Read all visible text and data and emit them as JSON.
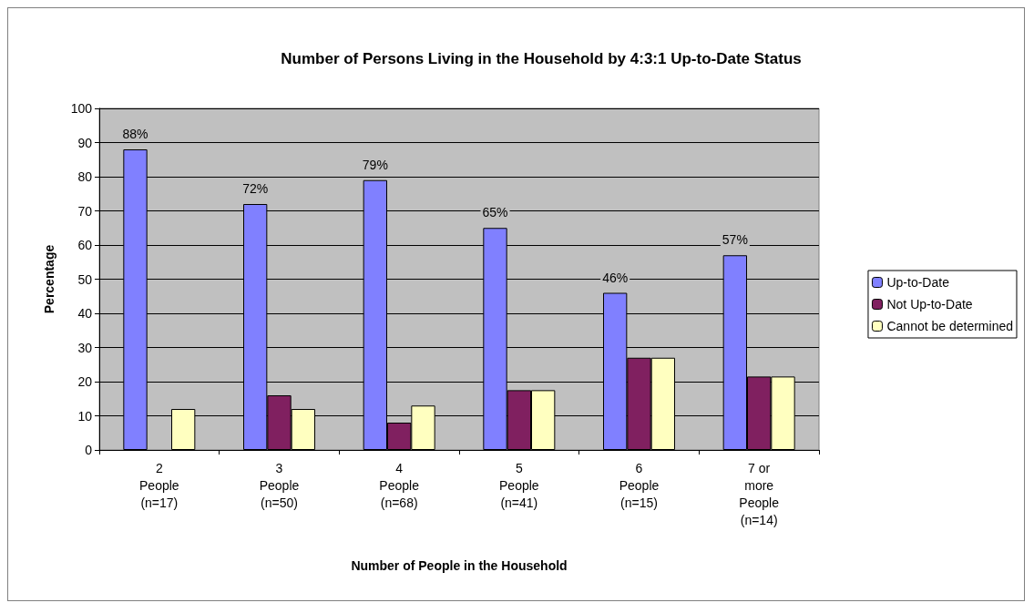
{
  "chart_data": {
    "type": "bar",
    "title": "Number of Persons Living in the Household by 4:3:1 Up-to-Date Status",
    "xlabel": "Number of People in the Household",
    "ylabel": "Percentage",
    "categories": [
      "2\nPeople\n(n=17)",
      "3\nPeople\n(n=50)",
      "4\nPeople\n(n=68)",
      "5\nPeople\n(n=41)",
      "6\nPeople\n(n=15)",
      "7 or\nmore\nPeople\n(n=14)"
    ],
    "series": [
      {
        "name": "Up-to-Date",
        "color": "#8080ff",
        "values": [
          88,
          72,
          79,
          65,
          46,
          57
        ],
        "value_labels": [
          "88%",
          "72%",
          "79%",
          "65%",
          "46%",
          "57%"
        ]
      },
      {
        "name": "Not Up-to-Date",
        "color": "#802060",
        "values": [
          null,
          16,
          8,
          17.5,
          27,
          21.5
        ]
      },
      {
        "name": "Cannot be determined",
        "color": "#ffffc0",
        "values": [
          12,
          12,
          13,
          17.5,
          27,
          21.5
        ]
      }
    ],
    "ylim": [
      0,
      100
    ],
    "yticks": [
      0,
      10,
      20,
      30,
      40,
      50,
      60,
      70,
      80,
      90,
      100
    ],
    "grid": "y",
    "legend": "right"
  }
}
